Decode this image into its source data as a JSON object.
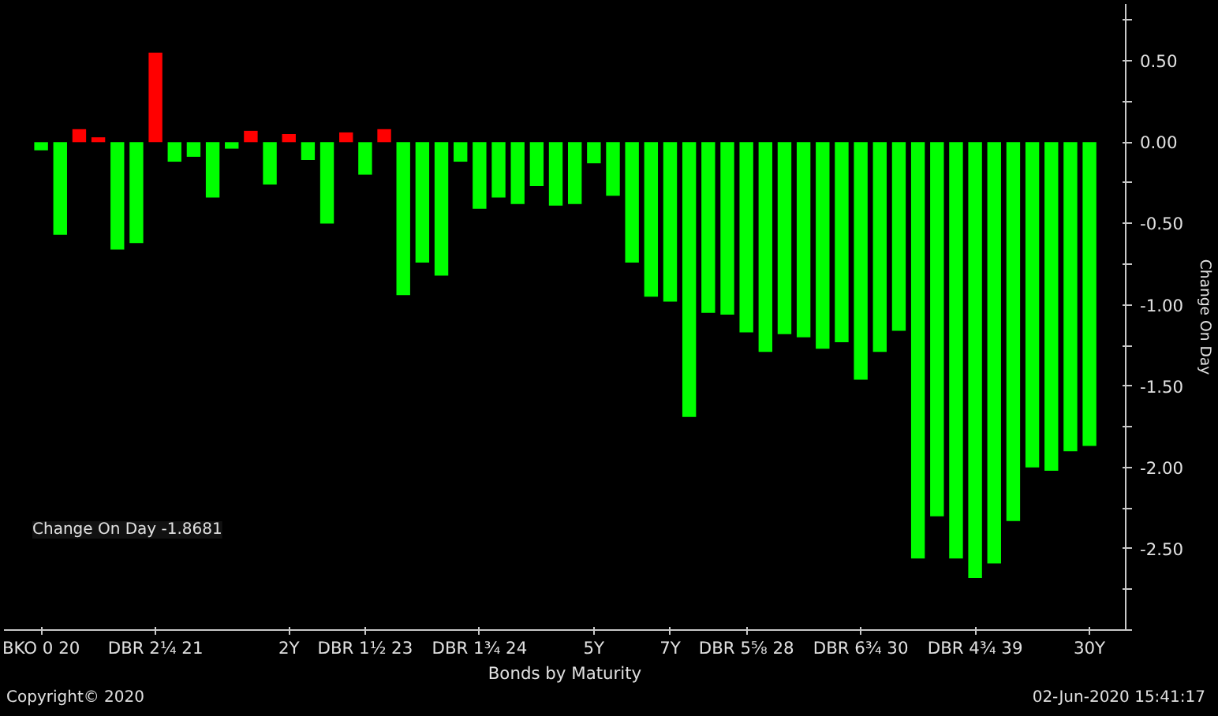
{
  "chart_data": {
    "type": "bar",
    "xlabel": "Bonds by Maturity",
    "ylabel": "Change On Day",
    "categories": [
      "BKO 0 20",
      null,
      null,
      null,
      null,
      null,
      "DBR 2¼ 21",
      null,
      null,
      null,
      null,
      null,
      null,
      "2Y",
      null,
      null,
      null,
      "DBR 1½ 23",
      null,
      null,
      null,
      null,
      null,
      "DBR 1¾ 24",
      null,
      null,
      null,
      null,
      null,
      "5Y",
      null,
      null,
      null,
      "7Y",
      null,
      null,
      null,
      "DBR 5⅝ 28",
      null,
      null,
      null,
      null,
      null,
      "DBR 6¾ 30",
      null,
      null,
      null,
      null,
      null,
      "DBR 4¾ 39",
      null,
      null,
      null,
      null,
      null,
      "30Y"
    ],
    "values": [
      -0.05,
      -0.57,
      0.08,
      0.03,
      -0.66,
      -0.62,
      0.55,
      -0.12,
      -0.09,
      -0.34,
      -0.04,
      0.07,
      -0.26,
      0.05,
      -0.11,
      -0.5,
      0.06,
      -0.2,
      0.08,
      -0.94,
      -0.74,
      -0.82,
      -0.12,
      -0.41,
      -0.34,
      -0.38,
      -0.27,
      -0.39,
      -0.38,
      -0.13,
      -0.33,
      -0.74,
      -0.95,
      -0.98,
      -1.69,
      -1.05,
      -1.06,
      -1.17,
      -1.29,
      -1.18,
      -1.2,
      -1.27,
      -1.23,
      -1.46,
      -1.29,
      -1.16,
      -2.56,
      -2.3,
      -2.56,
      -2.68,
      -2.59,
      -2.33,
      -2.0,
      -2.02,
      -1.9,
      -1.8681
    ],
    "colors": [
      "#00ff00",
      "#00ff00",
      "#ff0000",
      "#ff0000",
      "#00ff00",
      "#00ff00",
      "#ff0000",
      "#00ff00",
      "#00ff00",
      "#00ff00",
      "#00ff00",
      "#ff0000",
      "#00ff00",
      "#ff0000",
      "#00ff00",
      "#00ff00",
      "#ff0000",
      "#00ff00",
      "#ff0000",
      "#00ff00",
      "#00ff00",
      "#00ff00",
      "#00ff00",
      "#00ff00",
      "#00ff00",
      "#00ff00",
      "#00ff00",
      "#00ff00",
      "#00ff00",
      "#00ff00",
      "#00ff00",
      "#00ff00",
      "#00ff00",
      "#00ff00",
      "#00ff00",
      "#00ff00",
      "#00ff00",
      "#00ff00",
      "#00ff00",
      "#00ff00",
      "#00ff00",
      "#00ff00",
      "#00ff00",
      "#00ff00",
      "#00ff00",
      "#00ff00",
      "#00ff00",
      "#00ff00",
      "#00ff00",
      "#00ff00",
      "#00ff00",
      "#00ff00",
      "#00ff00",
      "#00ff00",
      "#00ff00",
      "#00ff00"
    ],
    "ylim": [
      -3.0,
      0.85
    ],
    "yticks": [
      {
        "value": 0.75,
        "label": null
      },
      {
        "value": 0.5,
        "label": "0.50"
      },
      {
        "value": 0.25,
        "label": null
      },
      {
        "value": 0,
        "label": "0.00"
      },
      {
        "value": -0.25,
        "label": null
      },
      {
        "value": -0.5,
        "label": "-0.50"
      },
      {
        "value": -0.75,
        "label": null
      },
      {
        "value": -1.0,
        "label": "-1.00"
      },
      {
        "value": -1.25,
        "label": null
      },
      {
        "value": -1.5,
        "label": "-1.50"
      },
      {
        "value": -1.75,
        "label": null
      },
      {
        "value": -2.0,
        "label": "-2.00"
      },
      {
        "value": -2.25,
        "label": null
      },
      {
        "value": -2.5,
        "label": "-2.50"
      },
      {
        "value": -2.75,
        "label": null
      },
      {
        "value": -3.0,
        "label": null
      }
    ],
    "annotations": [
      "Change On Day -1.8681",
      "Copyright© 2020",
      "02-Jun-2020 15:41:17"
    ],
    "grid": false
  }
}
